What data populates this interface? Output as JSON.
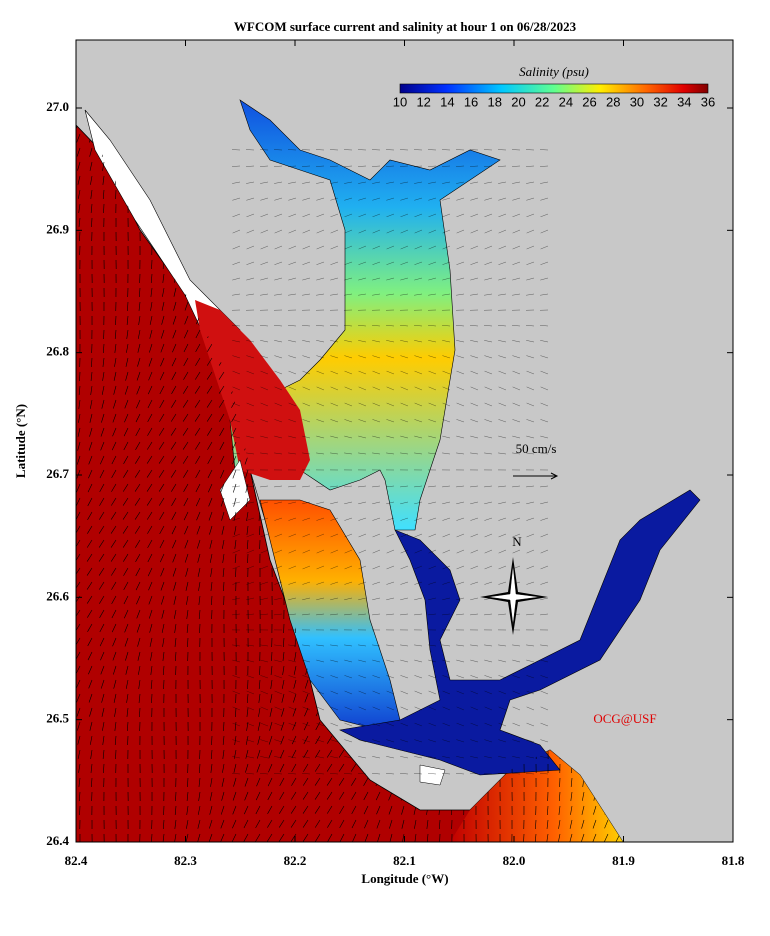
{
  "map": {
    "title": "WFCOM surface current and salinity at hour 1 on 06/28/2023",
    "x_axis": {
      "label": "Longitude (°W)",
      "ticks": [
        "82.4",
        "82.3",
        "82.2",
        "82.1",
        "82.0",
        "81.9",
        "81.8"
      ]
    },
    "y_axis": {
      "label": "Latitude (°N)",
      "ticks": [
        "26.4",
        "26.5",
        "26.6",
        "26.7",
        "26.8",
        "26.9",
        "27.0"
      ]
    },
    "colorbar": {
      "label": "Salinity (psu)",
      "ticks": [
        "10",
        "12",
        "14",
        "16",
        "18",
        "20",
        "22",
        "24",
        "26",
        "28",
        "30",
        "32",
        "34",
        "36"
      ]
    },
    "scale_label": "50 cm/s",
    "compass_label": "N",
    "credit": "OCG@USF"
  }
}
